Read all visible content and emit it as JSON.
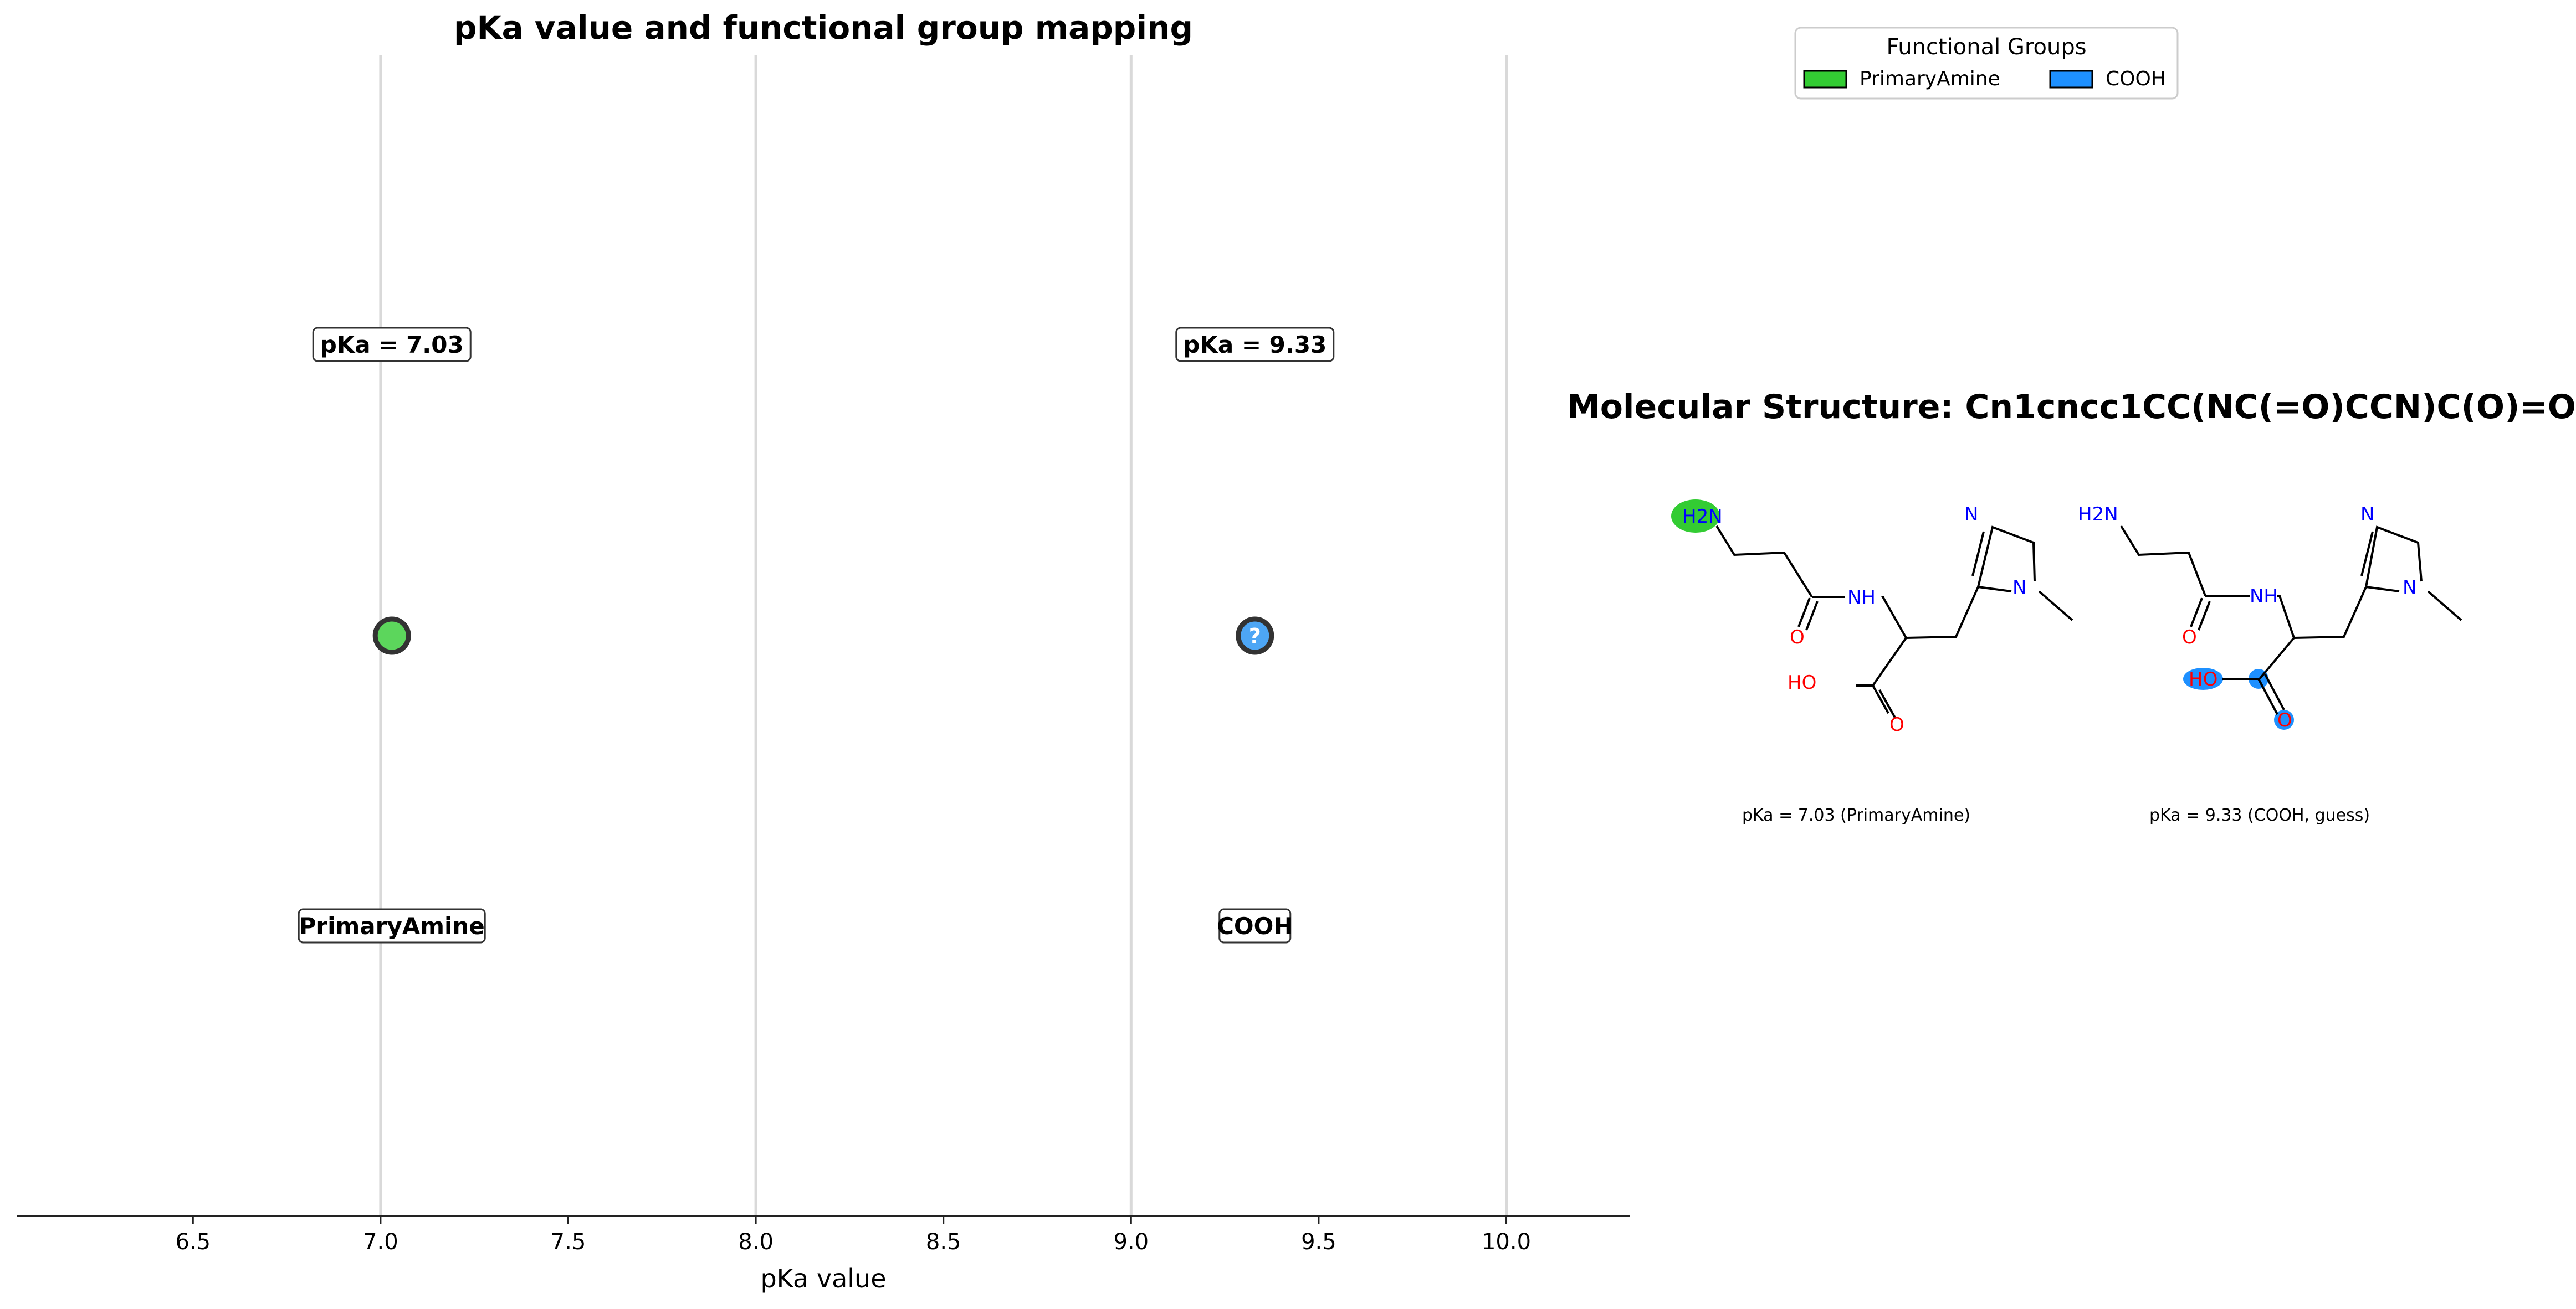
{
  "chart_data": {
    "type": "scatter",
    "title": "pKa value and functional group mapping",
    "xlabel": "pKa value",
    "ylabel": "",
    "xlim": [
      6.03,
      10.33
    ],
    "x_ticks": [
      "6.5",
      "7.0",
      "7.5",
      "8.0",
      "8.5",
      "9.0",
      "9.5",
      "10.0"
    ],
    "x_tick_values": [
      6.5,
      7.0,
      7.5,
      8.0,
      8.5,
      9.0,
      9.5,
      10.0
    ],
    "vertical_gridlines_at": [
      7.0,
      8.0,
      9.0,
      10.0
    ],
    "grid": true,
    "points": [
      {
        "x": 7.03,
        "group": "PrimaryAmine",
        "value_label": "pKa = 7.03",
        "group_label": "PrimaryAmine",
        "color": "#5cd65c",
        "marker_text": ""
      },
      {
        "x": 9.33,
        "group": "COOH",
        "value_label": "pKa = 9.33",
        "group_label": "COOH",
        "color": "#4da6f5",
        "marker_text": "?"
      }
    ],
    "legend": {
      "title": "Functional Groups",
      "placement": "top-right",
      "entries": [
        {
          "label": "PrimaryAmine",
          "color": "#33cc33"
        },
        {
          "label": "COOH",
          "color": "#1e90ff"
        }
      ]
    }
  },
  "molecule": {
    "title": "Molecular Structure: Cn1cncc1CC(NC(=O)CCN)C(O)=O",
    "captions": [
      "pKa = 7.03 (PrimaryAmine)",
      "pKa = 9.33 (COOH, guess)"
    ],
    "atom_labels": {
      "amine": "H2N",
      "amide_nh": "NH",
      "ring_n_top": "N",
      "ring_n_methyl": "N",
      "carbonyl_o": "O",
      "hydroxyl": "HO",
      "acid_o": "O"
    },
    "highlight_colors": {
      "amine": "#33cc33",
      "acid": "#1e90ff"
    }
  }
}
